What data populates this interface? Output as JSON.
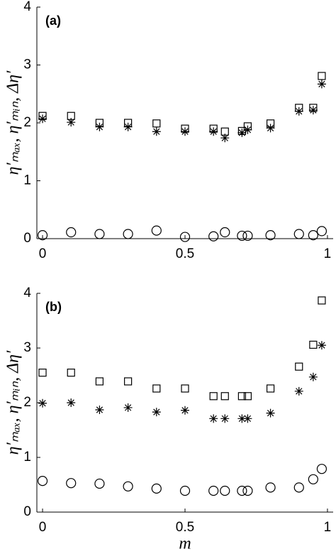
{
  "chart_data": [
    {
      "type": "scatter",
      "annotation": "(a)",
      "ylabel": "η′ₘₐₓ, η′ₘᵢₙ, Δη′",
      "x": [
        0,
        0.1,
        0.2,
        0.3,
        0.4,
        0.5,
        0.6,
        0.64,
        0.7,
        0.72,
        0.8,
        0.9,
        0.95,
        0.98
      ],
      "xlim": [
        -0.02,
        1.02
      ],
      "xticks": [
        0,
        0.5,
        1
      ],
      "ylim": [
        0,
        4
      ],
      "yticks": [
        0,
        1,
        2,
        3,
        4
      ],
      "series": [
        {
          "marker": "square",
          "color": "#000000",
          "values": [
            2.12,
            2.12,
            2.0,
            2.0,
            1.99,
            1.9,
            1.9,
            1.85,
            1.86,
            1.94,
            1.99,
            2.26,
            2.26,
            2.81
          ]
        },
        {
          "marker": "asterisk",
          "color": "#000000",
          "values": [
            2.07,
            2.01,
            1.93,
            1.93,
            1.85,
            1.85,
            1.85,
            1.74,
            1.83,
            1.88,
            1.91,
            2.2,
            2.22,
            2.67
          ]
        },
        {
          "marker": "circle",
          "color": "#000000",
          "values": [
            0.06,
            0.11,
            0.08,
            0.08,
            0.14,
            0.03,
            0.04,
            0.11,
            0.05,
            0.05,
            0.06,
            0.08,
            0.06,
            0.13
          ]
        }
      ]
    },
    {
      "type": "scatter",
      "annotation": "(b)",
      "ylabel": "η′ₘₐₓ, η′ₘᵢₙ, Δη′",
      "xlabel": "m",
      "x": [
        0,
        0.1,
        0.2,
        0.3,
        0.4,
        0.5,
        0.6,
        0.64,
        0.7,
        0.72,
        0.8,
        0.9,
        0.95,
        0.98
      ],
      "xlim": [
        -0.02,
        1.02
      ],
      "xticks": [
        0,
        0.5,
        1
      ],
      "ylim": [
        0,
        4
      ],
      "yticks": [
        0,
        1,
        2,
        3,
        4
      ],
      "series": [
        {
          "marker": "square",
          "color": "#000000",
          "values": [
            2.55,
            2.55,
            2.39,
            2.39,
            2.26,
            2.26,
            2.12,
            2.12,
            2.12,
            2.12,
            2.26,
            2.66,
            3.06,
            3.87
          ]
        },
        {
          "marker": "asterisk",
          "color": "#000000",
          "values": [
            1.99,
            2.0,
            1.87,
            1.91,
            1.83,
            1.86,
            1.71,
            1.71,
            1.71,
            1.71,
            1.81,
            2.21,
            2.47,
            3.05
          ]
        },
        {
          "marker": "circle",
          "color": "#000000",
          "values": [
            0.57,
            0.53,
            0.52,
            0.47,
            0.43,
            0.39,
            0.39,
            0.39,
            0.39,
            0.39,
            0.45,
            0.45,
            0.6,
            0.79
          ]
        }
      ]
    }
  ]
}
